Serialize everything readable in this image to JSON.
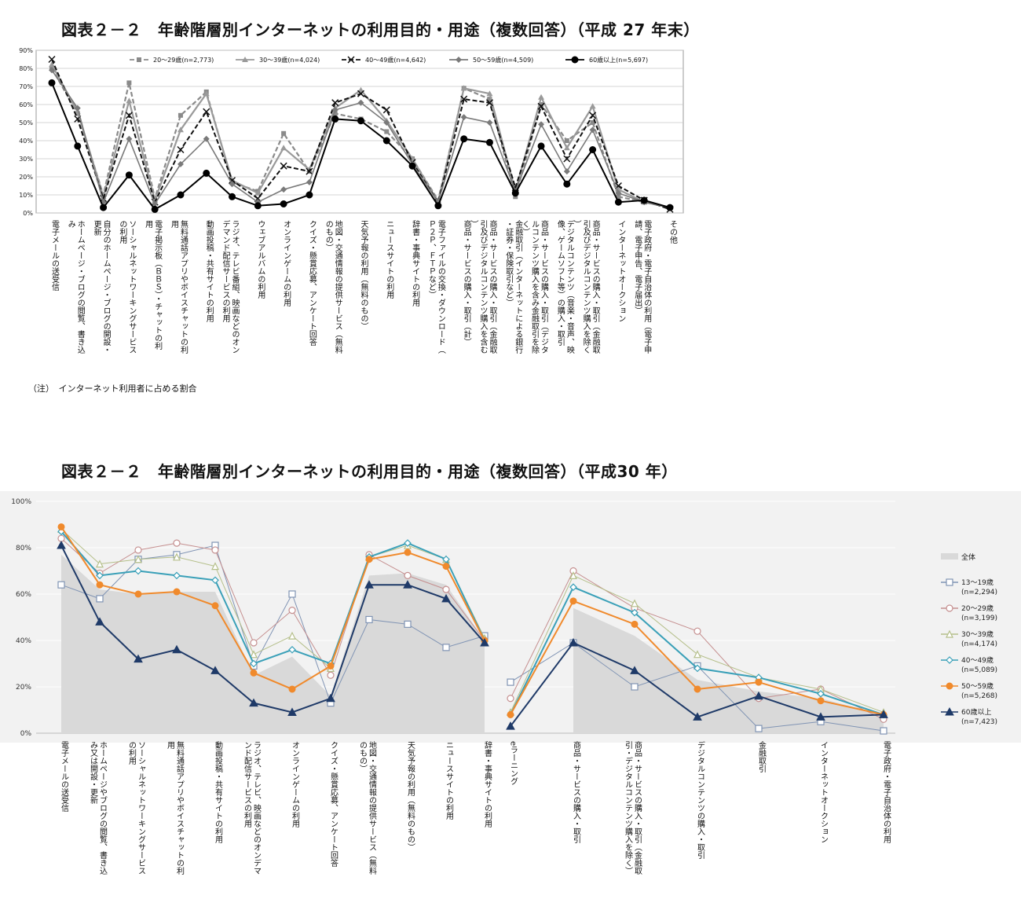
{
  "chart_data": [
    {
      "type": "line",
      "title": "図表２－２　年齢階層別インターネットの利用目的・用途（複数回答）（平成 27 年末）",
      "note": "（注）　インターネット利用者に占める割合",
      "ylim": [
        0,
        90
      ],
      "yticks": [
        "0%",
        "10%",
        "20%",
        "30%",
        "40%",
        "50%",
        "60%",
        "70%",
        "80%",
        "90%"
      ],
      "grid": true,
      "legend_position": "top",
      "categories": [
        "電子メールの送受信",
        "ホームページ・ブログの閲覧、書き込み",
        "自分のホームページ・ブログの開設・更新",
        "ソーシャルネットワーキングサービスの利用",
        "電子掲示板（ＢＢＳ）・チャットの利用",
        "無料通話アプリやボイスチャットの利用",
        "動画投稿・共有サイトの利用",
        "ラジオ、テレビ番組、映画などのオンデマンド配信サービスの利用",
        "ウェブアルバムの利用",
        "オンラインゲームの利用",
        "クイズ・懸賞応募、アンケート回答",
        "地図・交通情報の提供サービス（無料のもの）",
        "天気予報の利用（無料のもの）",
        "ニュースサイトの利用",
        "辞書・事典サイトの利用",
        "電子ファイルの交換・ダウンロード（Ｐ２Ｐ、ＦＴＰなど）",
        "商品・サービスの購入・取引（計）",
        "商品・サービスの購入・取引（金融取引及びデジタルコンテンツ購入を含む）",
        "金融取引（インターネットによる銀行・証券・保険取引など）",
        "商品・サービスの購入・取引（デジタルコンテンツ購入を含み金融取引を除く）",
        "デジタルコンテンツ（音楽・音声、映像、ゲームソフト等）の購入・取引",
        "商品・サービスの購入・取引（金融取引及びデジタルコンテンツ購入を除く）",
        "インターネットオークション",
        "電子政府・電子自治体の利用（電子申請、電子申告、電子届出）",
        "その他"
      ],
      "series": [
        {
          "name": "20～29歳(n=2,773)",
          "color": "#8a8a8a",
          "values": [
            80,
            55,
            10,
            72,
            8,
            54,
            67,
            17,
            12,
            44,
            23,
            55,
            52,
            45,
            30,
            7,
            69,
            63,
            9,
            60,
            40,
            50,
            9,
            6,
            3
          ]
        },
        {
          "name": "30～39歳(n=4,024)",
          "color": "#9a9a9a",
          "values": [
            82,
            56,
            9,
            62,
            7,
            46,
            66,
            18,
            11,
            36,
            24,
            58,
            68,
            51,
            30,
            6,
            69,
            66,
            12,
            64,
            36,
            59,
            13,
            6,
            3
          ]
        },
        {
          "name": "40～49歳(n=4,642)",
          "color": "#111111",
          "values": [
            85,
            52,
            8,
            54,
            6,
            35,
            56,
            18,
            8,
            26,
            23,
            61,
            66,
            57,
            28,
            6,
            63,
            61,
            14,
            59,
            30,
            54,
            15,
            7,
            2
          ]
        },
        {
          "name": "50～59歳(n=4,509)",
          "color": "#7a7a7a",
          "values": [
            79,
            58,
            6,
            41,
            5,
            27,
            41,
            16,
            6,
            13,
            17,
            57,
            61,
            50,
            27,
            6,
            53,
            50,
            12,
            49,
            23,
            46,
            11,
            6,
            3
          ]
        },
        {
          "name": "60歳以上(n=5,697)",
          "color": "#000000",
          "values": [
            72,
            37,
            3,
            21,
            2,
            10,
            22,
            9,
            4,
            5,
            10,
            52,
            51,
            40,
            26,
            4,
            41,
            39,
            11,
            37,
            16,
            35,
            6,
            7,
            3
          ]
        }
      ]
    },
    {
      "type": "line",
      "title": "図表２－２　年齢階層別インターネットの利用目的・用途（複数回答）（平成30 年）",
      "ylim": [
        0,
        100
      ],
      "yticks": [
        "0%",
        "20%",
        "40%",
        "60%",
        "80%",
        "100%"
      ],
      "grid": true,
      "legend_position": "right",
      "categories": [
        "電子メールの送受信",
        "ホームページやブログの閲覧、書き込み又は開設・更新",
        "ソーシャルネットワーキングサービスの利用",
        "無料通話アプリやボイスチャットの利用",
        "動画投稿・共有サイトの利用",
        "ラジオ、テレビ、映画などのオンデマンド配信サービスの利用",
        "オンラインゲームの利用",
        "クイズ・懸賞応募、アンケート回答",
        "地図・交通情報の提供サービス（無料のもの）",
        "天気予報の利用（無料のもの）",
        "ニュースサイトの利用",
        "辞書・事典サイトの利用",
        "eラーニング",
        "商品・サービスの購入・取引",
        "商品・サービスの購入・取引（金融取引・デジタルコンテンツ購入を除く）",
        "デジタルコンテンツの購入・取引",
        "金融取引",
        "インターネットオークション",
        "電子政府・電子自治体の利用"
      ],
      "area": {
        "name": "全体",
        "color": "#d9d9d9",
        "values": [
          77,
          62,
          60,
          61,
          61,
          25,
          33,
          16,
          68,
          69,
          64,
          40,
          null,
          54,
          42,
          23,
          18,
          15,
          8
        ]
      },
      "series": [
        {
          "name": "13～19歳(n=2,294)",
          "color": "#8094b4",
          "marker": "square",
          "values": [
            64,
            58,
            75,
            77,
            81,
            29,
            60,
            13,
            49,
            47,
            37,
            42,
            22,
            39,
            20,
            29,
            2,
            5,
            1
          ]
        },
        {
          "name": "20～29歳(n=3,199)",
          "color": "#c58f8f",
          "marker": "circle",
          "values": [
            84,
            69,
            79,
            82,
            79,
            39,
            53,
            25,
            77,
            68,
            62,
            40,
            15,
            70,
            54,
            44,
            15,
            19,
            6
          ]
        },
        {
          "name": "30～39歳(n=4,174)",
          "color": "#b5bf8a",
          "marker": "triangle",
          "values": [
            88,
            73,
            75,
            76,
            72,
            34,
            42,
            28,
            76,
            81,
            75,
            41,
            9,
            68,
            56,
            34,
            24,
            19,
            9
          ]
        },
        {
          "name": "40～49歳(n=5,089)",
          "color": "#3aa0b8",
          "marker": "diamond",
          "values": [
            87,
            68,
            70,
            68,
            66,
            30,
            36,
            30,
            76,
            82,
            75,
            40,
            8,
            63,
            52,
            28,
            24,
            17,
            8
          ]
        },
        {
          "name": "50～59歳(n=5,268)",
          "color": "#f08a2c",
          "marker": "filled-circle",
          "values": [
            89,
            64,
            60,
            61,
            55,
            26,
            19,
            29,
            75,
            78,
            72,
            40,
            8,
            57,
            47,
            19,
            22,
            14,
            8
          ]
        },
        {
          "name": "60歳以上(n=7,423)",
          "color": "#1f3a68",
          "marker": "filled-triangle",
          "values": [
            81,
            48,
            32,
            36,
            27,
            13,
            9,
            15,
            64,
            64,
            58,
            39,
            3,
            39,
            27,
            7,
            16,
            7,
            8
          ]
        }
      ]
    }
  ]
}
